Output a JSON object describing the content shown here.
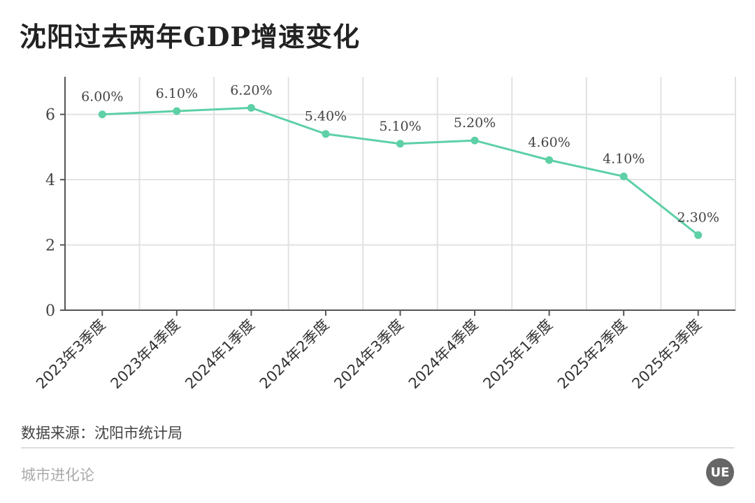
{
  "title": "沈阳过去两年GDP增速变化",
  "source": "数据来源：沈阳市统计局",
  "brand": "城市进化论",
  "logo_text": "UE",
  "chart_data": {
    "type": "line",
    "title": "沈阳过去两年GDP增速变化",
    "categories": [
      "2023年3季度",
      "2023年4季度",
      "2024年1季度",
      "2024年2季度",
      "2024年3季度",
      "2024年4季度",
      "2025年1季度",
      "2025年2季度",
      "2025年3季度"
    ],
    "values": [
      6.0,
      6.1,
      6.2,
      5.4,
      5.1,
      5.2,
      4.6,
      4.1,
      2.3
    ],
    "data_labels": [
      "6.00%",
      "6.10%",
      "6.20%",
      "5.40%",
      "5.10%",
      "5.20%",
      "4.60%",
      "4.10%",
      "2.30%"
    ],
    "yticks": [
      0,
      2,
      4,
      6
    ],
    "ylim": [
      0,
      7.15
    ],
    "grid": true,
    "color": "#5dd0a6"
  }
}
